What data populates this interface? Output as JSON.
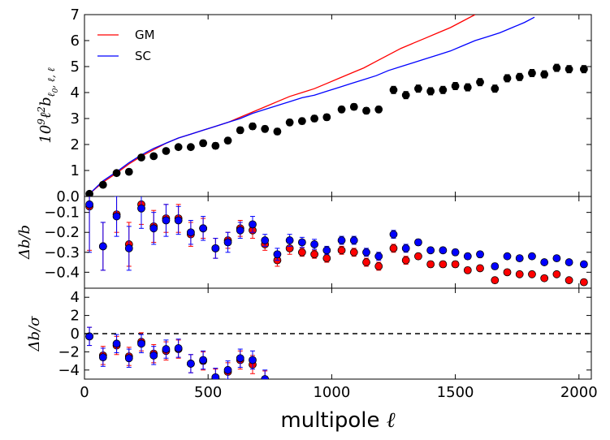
{
  "chart_data": [
    {
      "type": "line+scatter",
      "panel": "top",
      "ylabel": "10^9 ℓ^2 b_{ℓ0,ℓ,ℓ}",
      "xlim": [
        0,
        2050
      ],
      "ylim": [
        0,
        7
      ],
      "yticks": [
        "0.0",
        "1",
        "2",
        "3",
        "4",
        "5",
        "6",
        "7"
      ],
      "legend": {
        "placement": "top-left",
        "entries": [
          "GM",
          "SC"
        ]
      },
      "series": [
        {
          "name": "GM",
          "color": "#ff0000",
          "x": [
            20,
            75,
            130,
            180,
            230,
            280,
            330,
            380,
            430,
            480,
            530,
            580,
            630,
            680,
            730,
            780,
            830,
            880,
            930,
            980,
            1030,
            1080,
            1130,
            1180,
            1230,
            1280,
            1330,
            1380,
            1430,
            1480,
            1530,
            1580
          ],
          "y": [
            0.1,
            0.55,
            0.9,
            1.25,
            1.55,
            1.8,
            2.05,
            2.25,
            2.4,
            2.55,
            2.7,
            2.85,
            3.05,
            3.25,
            3.45,
            3.65,
            3.85,
            4.0,
            4.15,
            4.35,
            4.55,
            4.75,
            4.95,
            5.2,
            5.45,
            5.7,
            5.9,
            6.1,
            6.3,
            6.5,
            6.75,
            7.0
          ]
        },
        {
          "name": "SC",
          "color": "#0000ff",
          "x": [
            20,
            75,
            130,
            180,
            230,
            280,
            330,
            380,
            430,
            480,
            530,
            580,
            630,
            680,
            730,
            780,
            830,
            880,
            930,
            980,
            1030,
            1080,
            1130,
            1180,
            1230,
            1280,
            1330,
            1380,
            1430,
            1480,
            1530,
            1580,
            1630,
            1680,
            1730,
            1780,
            1820
          ],
          "y": [
            0.1,
            0.6,
            0.95,
            1.3,
            1.6,
            1.85,
            2.05,
            2.25,
            2.4,
            2.55,
            2.7,
            2.85,
            3.0,
            3.2,
            3.35,
            3.5,
            3.65,
            3.8,
            3.9,
            4.05,
            4.2,
            4.35,
            4.5,
            4.65,
            4.85,
            5.0,
            5.15,
            5.3,
            5.45,
            5.6,
            5.8,
            6.0,
            6.15,
            6.3,
            6.5,
            6.7,
            6.9
          ]
        },
        {
          "name": "",
          "color": "#000000",
          "points": true,
          "x": [
            20,
            75,
            130,
            180,
            230,
            280,
            330,
            380,
            430,
            480,
            530,
            580,
            630,
            680,
            730,
            780,
            830,
            880,
            930,
            980,
            1040,
            1090,
            1140,
            1190,
            1250,
            1300,
            1350,
            1400,
            1450,
            1500,
            1550,
            1600,
            1660,
            1710,
            1760,
            1810,
            1860,
            1910,
            1960,
            2020
          ],
          "y": [
            0.1,
            0.45,
            0.9,
            0.95,
            1.5,
            1.55,
            1.75,
            1.9,
            1.9,
            2.05,
            1.95,
            2.15,
            2.55,
            2.7,
            2.6,
            2.5,
            2.85,
            2.9,
            3.0,
            3.05,
            3.35,
            3.45,
            3.3,
            3.35,
            4.1,
            3.9,
            4.15,
            4.05,
            4.1,
            4.25,
            4.2,
            4.4,
            4.15,
            4.55,
            4.6,
            4.75,
            4.7,
            4.95,
            4.9,
            4.9
          ],
          "err": [
            0.03,
            0.05,
            0.08,
            0.1,
            0.1,
            0.1,
            0.1,
            0.1,
            0.1,
            0.12,
            0.12,
            0.12,
            0.12,
            0.12,
            0.12,
            0.12,
            0.12,
            0.12,
            0.12,
            0.12,
            0.12,
            0.12,
            0.12,
            0.12,
            0.14,
            0.14,
            0.14,
            0.14,
            0.14,
            0.14,
            0.14,
            0.14,
            0.14,
            0.14,
            0.14,
            0.14,
            0.14,
            0.14,
            0.14,
            0.14
          ]
        }
      ]
    },
    {
      "type": "scatter",
      "panel": "middle",
      "ylabel": "Δb/b",
      "xlim": [
        0,
        2050
      ],
      "ylim": [
        -0.48,
        -0.02
      ],
      "y_inverted": true,
      "yticks": [
        "-0.1",
        "-0.2",
        "-0.3",
        "-0.4"
      ],
      "series": [
        {
          "name": "GM",
          "color": "#ff0000",
          "x": [
            20,
            75,
            130,
            180,
            230,
            280,
            330,
            380,
            430,
            480,
            530,
            580,
            630,
            680,
            730,
            780,
            830,
            880,
            930,
            980,
            1040,
            1090,
            1140,
            1190,
            1250,
            1300,
            1350,
            1400,
            1450,
            1500,
            1550,
            1600,
            1660,
            1710,
            1760,
            1810,
            1860,
            1910,
            1960,
            2020
          ],
          "y": [
            -0.07,
            -0.27,
            -0.11,
            -0.26,
            -0.06,
            -0.17,
            -0.13,
            -0.13,
            -0.21,
            -0.18,
            -0.28,
            -0.24,
            -0.18,
            -0.19,
            -0.26,
            -0.34,
            -0.28,
            -0.3,
            -0.31,
            -0.33,
            -0.29,
            -0.3,
            -0.35,
            -0.37,
            -0.28,
            -0.34,
            -0.32,
            -0.36,
            -0.36,
            -0.36,
            -0.39,
            -0.38,
            -0.44,
            -0.4,
            -0.41,
            -0.41,
            -0.43,
            -0.41,
            -0.44,
            -0.45
          ],
          "err": [
            0.22,
            0.12,
            0.09,
            0.11,
            0.1,
            0.08,
            0.07,
            0.07,
            0.06,
            0.05,
            0.05,
            0.04,
            0.04,
            0.04,
            0.03,
            0.03,
            0.03,
            0.02,
            0.02,
            0.02,
            0.02,
            0.02,
            0.02,
            0.02,
            0.02,
            0.02,
            0.015,
            0.015,
            0.015,
            0.015,
            0.015,
            0.015,
            0.015,
            0.01,
            0.01,
            0.01,
            0.01,
            0.01,
            0.01,
            0.01
          ]
        },
        {
          "name": "SC",
          "color": "#0000ff",
          "x": [
            20,
            75,
            130,
            180,
            230,
            280,
            330,
            380,
            430,
            480,
            530,
            580,
            630,
            680,
            730,
            780,
            830,
            880,
            930,
            980,
            1040,
            1090,
            1140,
            1190,
            1250,
            1300,
            1350,
            1400,
            1450,
            1500,
            1550,
            1600,
            1660,
            1710,
            1760,
            1810,
            1860,
            1910,
            1960,
            2020
          ],
          "y": [
            -0.06,
            -0.27,
            -0.12,
            -0.28,
            -0.08,
            -0.18,
            -0.14,
            -0.14,
            -0.2,
            -0.18,
            -0.28,
            -0.25,
            -0.19,
            -0.16,
            -0.24,
            -0.31,
            -0.24,
            -0.25,
            -0.26,
            -0.29,
            -0.24,
            -0.24,
            -0.3,
            -0.32,
            -0.21,
            -0.28,
            -0.25,
            -0.29,
            -0.29,
            -0.3,
            -0.32,
            -0.31,
            -0.37,
            -0.32,
            -0.33,
            -0.32,
            -0.35,
            -0.33,
            -0.35,
            -0.36
          ],
          "err": [
            0.24,
            0.12,
            0.1,
            0.11,
            0.1,
            0.08,
            0.08,
            0.07,
            0.06,
            0.06,
            0.05,
            0.05,
            0.04,
            0.04,
            0.03,
            0.03,
            0.03,
            0.025,
            0.025,
            0.02,
            0.02,
            0.02,
            0.02,
            0.02,
            0.02,
            0.02,
            0.015,
            0.015,
            0.015,
            0.015,
            0.015,
            0.015,
            0.015,
            0.012,
            0.012,
            0.012,
            0.01,
            0.01,
            0.01,
            0.01
          ]
        }
      ]
    },
    {
      "type": "scatter",
      "panel": "bottom",
      "ylabel": "Δb/σ",
      "xlabel": "multipole ℓ",
      "xlim": [
        0,
        2050
      ],
      "ylim": [
        -5,
        5
      ],
      "xticks": [
        "0",
        "500",
        "1000",
        "1500",
        "2000"
      ],
      "yticks": [
        "4",
        "2",
        "0",
        "-2",
        "-4"
      ],
      "reference_line": {
        "y": 0,
        "style": "dashed"
      },
      "series": [
        {
          "name": "GM",
          "color": "#ff0000",
          "x": [
            20,
            75,
            130,
            180,
            230,
            280,
            330,
            380,
            430,
            480,
            530,
            580,
            630,
            680,
            730
          ],
          "y": [
            -0.3,
            -2.4,
            -1.3,
            -2.5,
            -0.9,
            -2.2,
            -1.9,
            -1.7,
            -3.3,
            -3.0,
            -4.9,
            -4.2,
            -2.9,
            -3.4,
            -5.1
          ],
          "err": [
            1,
            1,
            1,
            1,
            1,
            1,
            1,
            1,
            1,
            1,
            1,
            1,
            1,
            1,
            1
          ]
        },
        {
          "name": "SC",
          "color": "#0000ff",
          "x": [
            20,
            75,
            130,
            180,
            230,
            280,
            330,
            380,
            430,
            480,
            530,
            580,
            630,
            680,
            730
          ],
          "y": [
            -0.3,
            -2.6,
            -1.1,
            -2.7,
            -1.1,
            -2.4,
            -1.7,
            -1.6,
            -3.3,
            -2.9,
            -4.8,
            -4.0,
            -2.7,
            -2.9,
            -5.0
          ],
          "err": [
            1,
            1,
            1,
            1,
            1,
            1,
            1,
            1,
            1,
            1,
            1,
            1,
            1,
            1,
            1
          ]
        }
      ]
    }
  ]
}
